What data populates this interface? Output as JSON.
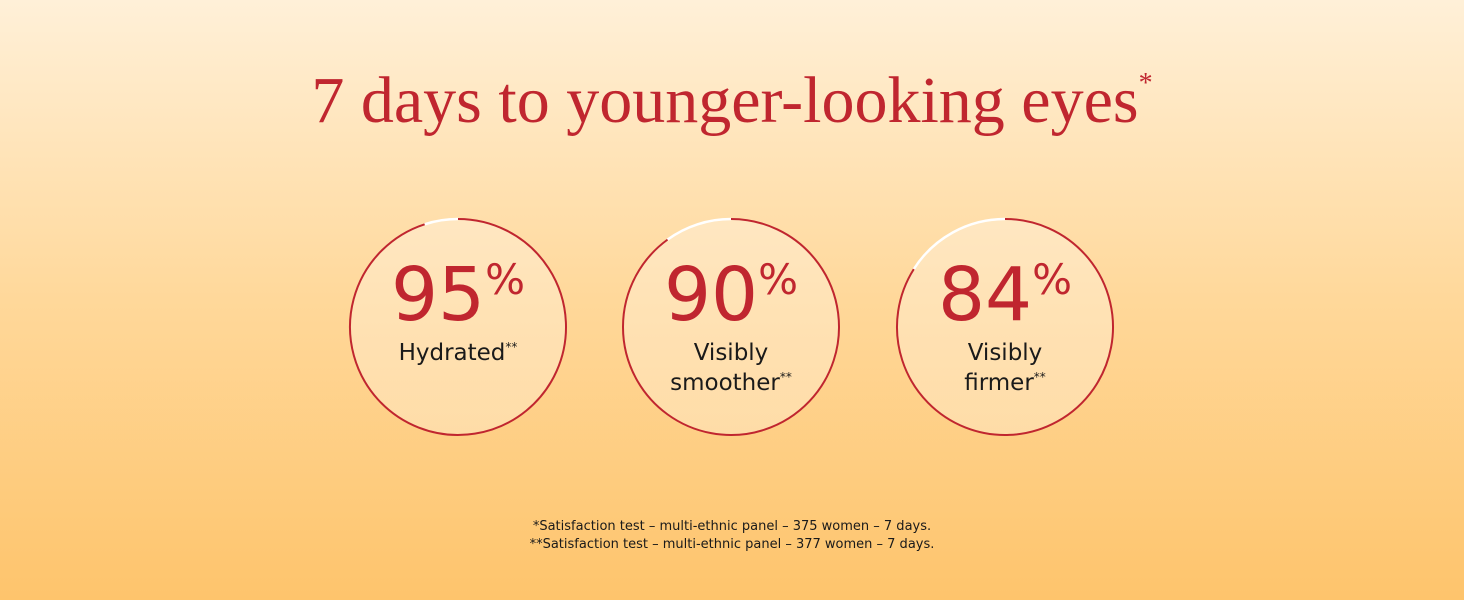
{
  "title": {
    "text": "7 days to younger-looking eyes",
    "note": "*"
  },
  "chart_data": {
    "type": "progress-ring",
    "ylim": [
      0,
      100
    ],
    "items": [
      {
        "value": 95,
        "unit": "%",
        "label": [
          "Hydrated"
        ],
        "note": "**"
      },
      {
        "value": 90,
        "unit": "%",
        "label": [
          "Visibly",
          "smoother"
        ],
        "note": "**"
      },
      {
        "value": 84,
        "unit": "%",
        "label": [
          "Visibly",
          "firmer"
        ],
        "note": "**"
      }
    ],
    "color": "#c0262f"
  },
  "footnotes": [
    "*Satisfaction test – multi-ethnic panel – 375 women – 7 days.",
    "**Satisfaction test – multi-ethnic panel – 377 women – 7 days."
  ]
}
